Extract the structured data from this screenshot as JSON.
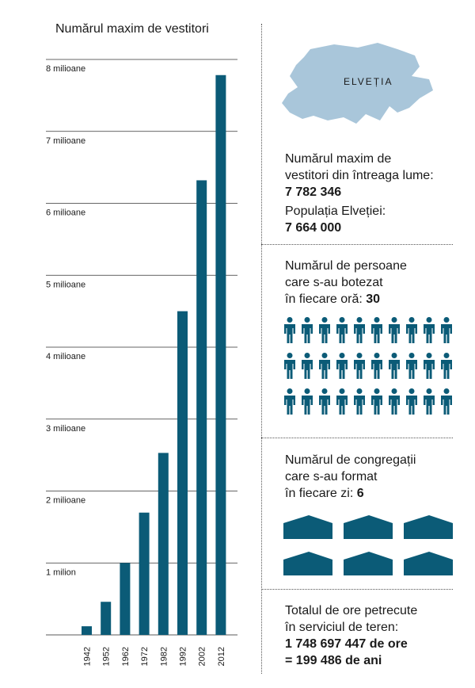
{
  "chart_data": {
    "type": "bar",
    "title": "Numărul maxim de vestitori",
    "categories": [
      "1942",
      "1952",
      "1962",
      "1972",
      "1982",
      "1992",
      "2002",
      "2012"
    ],
    "values": [
      120000,
      460000,
      1000000,
      1700000,
      2530000,
      4500000,
      6320000,
      7782346
    ],
    "ylim": [
      0,
      8000000
    ],
    "yticks": [
      {
        "value": 1000000,
        "label": "1 milion"
      },
      {
        "value": 2000000,
        "label": "2 milioane"
      },
      {
        "value": 3000000,
        "label": "3 milioane"
      },
      {
        "value": 4000000,
        "label": "4 milioane"
      },
      {
        "value": 5000000,
        "label": "5 milioane"
      },
      {
        "value": 6000000,
        "label": "6 milioane"
      },
      {
        "value": 7000000,
        "label": "7 milioane"
      },
      {
        "value": 8000000,
        "label": "8 milioane"
      }
    ],
    "grid": true,
    "bar_color": "#0b5b77"
  },
  "map": {
    "label": "ELVEȚIA",
    "color": "#a9c6da"
  },
  "stats": {
    "publishers": {
      "line1": "Numărul maxim de",
      "line2": "vestitori din întreaga lume:",
      "value": "7 782 346"
    },
    "population": {
      "line1": "Populația Elveției:",
      "value": "7 664 000"
    },
    "baptized": {
      "line1": "Numărul de persoane",
      "line2": "care s-au botezat",
      "line3": "în fiecare oră: ",
      "value": "30"
    },
    "congregations": {
      "line1": "Numărul de congregații",
      "line2": "care s-au format",
      "line3": "în fiecare zi: ",
      "value": "6"
    },
    "hours": {
      "line1": "Totalul de ore petrecute",
      "line2": "în serviciul de teren:",
      "value1": "1 748 697 447 de ore",
      "value2": "= 199 486 de ani"
    }
  },
  "icons": {
    "person": "person-icon",
    "house": "kingdom-hall-icon",
    "color": "#0b5b77"
  }
}
